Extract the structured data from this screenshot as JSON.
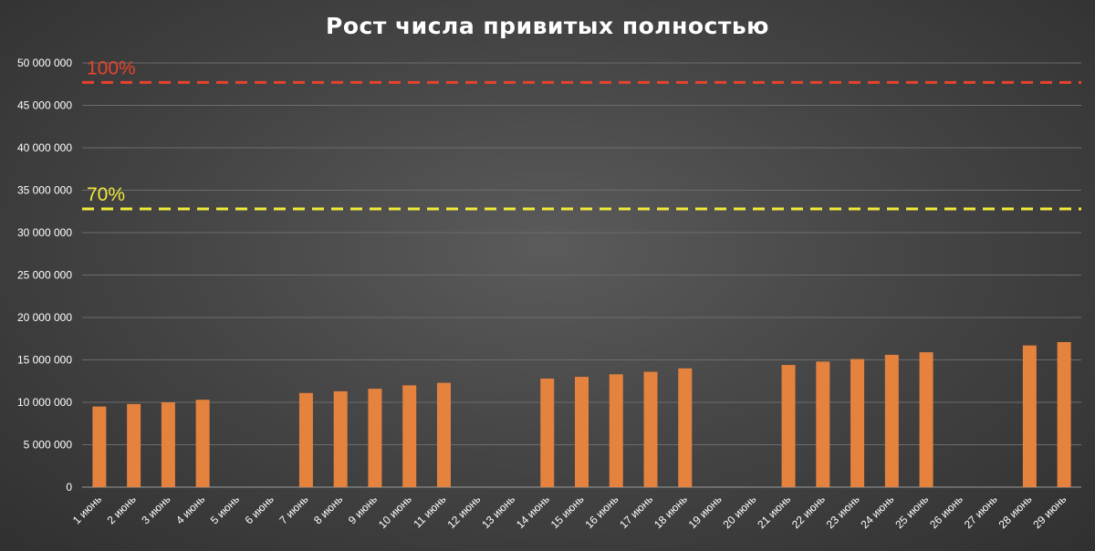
{
  "chart_data": {
    "type": "bar",
    "title": "Рост числа привитых полностью",
    "xlabel": "",
    "ylabel": "",
    "ylim": [
      0,
      50000000
    ],
    "yticks": [
      0,
      5000000,
      10000000,
      15000000,
      20000000,
      25000000,
      30000000,
      35000000,
      40000000,
      45000000,
      50000000
    ],
    "ytick_labels": [
      "0",
      "5 000 000",
      "10 000 000",
      "15 000 000",
      "20 000 000",
      "25 000 000",
      "30 000 000",
      "35 000 000",
      "40 000 000",
      "45 000 000",
      "50 000 000"
    ],
    "grid": true,
    "legend": "none",
    "categories": [
      "1 июнь",
      "2 июнь",
      "3 июнь",
      "4 июнь",
      "5 июнь",
      "6 июнь",
      "7 июнь",
      "8 июнь",
      "9 июнь",
      "10 июнь",
      "11 июнь",
      "12 июнь",
      "13 июнь",
      "14 июнь",
      "15 июнь",
      "16 июнь",
      "17 июнь",
      "18 июнь",
      "19 июнь",
      "20 июнь",
      "21 июнь",
      "22 июнь",
      "23 июнь",
      "24 июнь",
      "25 июнь",
      "26 июнь",
      "27 июнь",
      "28 июнь",
      "29 июнь"
    ],
    "values": [
      9500000,
      9800000,
      10000000,
      10300000,
      null,
      null,
      11100000,
      11300000,
      11600000,
      12000000,
      12300000,
      null,
      null,
      12800000,
      13000000,
      13300000,
      13600000,
      14000000,
      null,
      null,
      14400000,
      14800000,
      15100000,
      15600000,
      15900000,
      null,
      null,
      16700000,
      17100000
    ],
    "bar_color": "#e5823e",
    "reference_lines": [
      {
        "label": "100%",
        "value": 47700000,
        "color": "#e8432c"
      },
      {
        "label": "70%",
        "value": 32800000,
        "color": "#f0ea3a"
      }
    ]
  }
}
